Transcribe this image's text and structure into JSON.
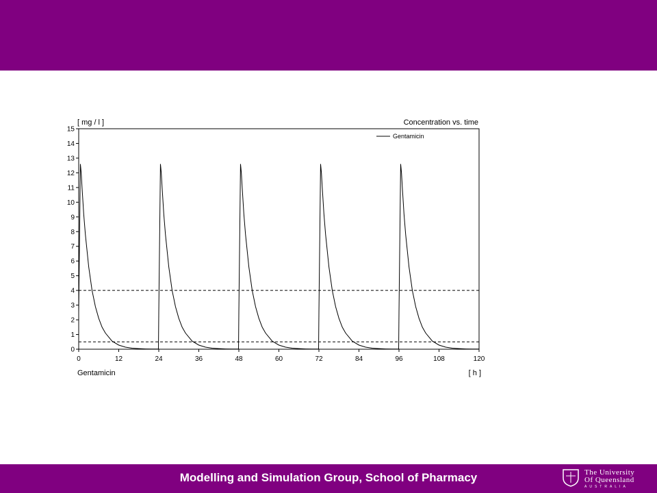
{
  "slide": {
    "footer": "Modelling and Simulation Group, School of Pharmacy",
    "logo": {
      "line1": "The University",
      "line2": "Of Queensland",
      "line3": "AUSTRALIA"
    },
    "colors": {
      "band": "#800080",
      "text": "#ffffff"
    }
  },
  "chart_data": {
    "type": "line",
    "title": "Concentration vs. time",
    "ylabel": "[ mg / l ]",
    "xlabel": "[ h ]",
    "bottom_label": "Gentamicin",
    "xlim": [
      0,
      120
    ],
    "ylim": [
      0,
      15
    ],
    "x_ticks": [
      0,
      12,
      24,
      36,
      48,
      60,
      72,
      84,
      96,
      108,
      120
    ],
    "y_ticks": [
      0,
      1,
      2,
      3,
      4,
      5,
      6,
      7,
      8,
      9,
      10,
      11,
      12,
      13,
      14,
      15
    ],
    "legend_position": "top-right",
    "grid": false,
    "reference_lines": [
      {
        "y": 4,
        "style": "dashed"
      },
      {
        "y": 0.5,
        "style": "dashed"
      }
    ],
    "series": [
      {
        "name": "Gentamicin",
        "color": "#000000",
        "dose_times": [
          0,
          24,
          48,
          72,
          96
        ],
        "x": [
          0,
          0.3,
          0.5,
          0.75,
          1,
          1.5,
          2,
          3,
          4,
          5,
          6,
          7,
          8,
          10,
          12,
          14,
          16,
          18,
          20,
          22,
          23.9,
          24,
          24.3,
          24.5,
          24.75,
          25,
          25.5,
          26,
          27,
          28,
          29,
          30,
          31,
          32,
          34,
          36,
          38,
          40,
          42,
          44,
          46,
          47.9,
          48,
          48.3,
          48.5,
          48.75,
          49,
          49.5,
          50,
          51,
          52,
          53,
          54,
          55,
          56,
          58,
          60,
          62,
          64,
          66,
          68,
          70,
          71.9,
          72,
          72.3,
          72.5,
          72.75,
          73,
          73.5,
          74,
          75,
          76,
          77,
          78,
          79,
          80,
          82,
          84,
          86,
          88,
          90,
          92,
          94,
          95.9,
          96,
          96.3,
          96.5,
          96.75,
          97,
          97.5,
          98,
          99,
          100,
          101,
          102,
          103,
          104,
          106,
          108,
          110,
          112,
          114,
          116,
          118,
          120
        ],
        "y": [
          2.5,
          8.5,
          12.6,
          12.0,
          11.0,
          9.2,
          7.8,
          5.6,
          4.0,
          2.9,
          2.1,
          1.5,
          1.1,
          0.55,
          0.28,
          0.14,
          0.07,
          0.04,
          0.02,
          0.01,
          0.01,
          2.5,
          8.5,
          12.6,
          12.0,
          11.0,
          9.2,
          7.8,
          5.6,
          4.0,
          2.9,
          2.1,
          1.5,
          1.1,
          0.55,
          0.28,
          0.14,
          0.07,
          0.04,
          0.02,
          0.01,
          0.01,
          2.5,
          8.5,
          12.6,
          12.0,
          11.0,
          9.2,
          7.8,
          5.6,
          4.0,
          2.9,
          2.1,
          1.5,
          1.1,
          0.55,
          0.28,
          0.14,
          0.07,
          0.04,
          0.02,
          0.01,
          0.01,
          2.5,
          8.5,
          12.6,
          12.0,
          11.0,
          9.2,
          7.8,
          5.6,
          4.0,
          2.9,
          2.1,
          1.5,
          1.1,
          0.55,
          0.28,
          0.14,
          0.07,
          0.04,
          0.02,
          0.01,
          0.01,
          2.5,
          8.5,
          12.6,
          12.0,
          11.0,
          9.2,
          7.8,
          5.6,
          4.0,
          2.9,
          2.1,
          1.5,
          1.1,
          0.55,
          0.28,
          0.14,
          0.07,
          0.04,
          0.02,
          0.01,
          0.01
        ]
      }
    ]
  }
}
